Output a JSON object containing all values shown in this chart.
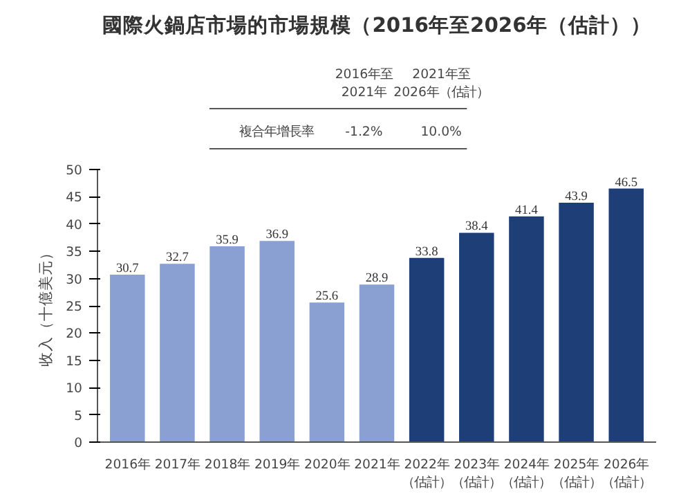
{
  "chart_data": {
    "type": "bar",
    "title": "國際火鍋店市場的市場規模（2016年至2026年（估計））",
    "ylabel": "收入（十億美元）",
    "categories": [
      "2016年",
      "2017年",
      "2018年",
      "2019年",
      "2020年",
      "2021年",
      "2022年（估計）",
      "2023年（估計）",
      "2024年（估計）",
      "2025年（估計）",
      "2026年（估計）"
    ],
    "values": [
      30.7,
      32.7,
      35.9,
      36.9,
      25.6,
      28.9,
      33.8,
      38.4,
      41.4,
      43.9,
      46.5
    ],
    "colors": [
      "#8a9fd2",
      "#8a9fd2",
      "#8a9fd2",
      "#8a9fd2",
      "#8a9fd2",
      "#8a9fd2",
      "#1e3e78",
      "#1e3e78",
      "#1e3e78",
      "#1e3e78",
      "#1e3e78"
    ],
    "data_labels": true,
    "ylim": [
      0,
      50
    ],
    "yticks": [
      0,
      5,
      10,
      15,
      20,
      25,
      30,
      35,
      40,
      45,
      50
    ],
    "grid": false,
    "annotations": [
      "2016年至2021年",
      "2021年至2026年（估計）",
      "複合年增長率",
      "-1.2%",
      "10.0%"
    ]
  }
}
